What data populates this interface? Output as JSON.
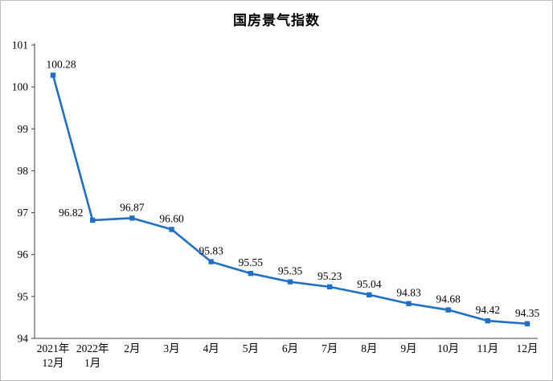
{
  "chart_data": {
    "type": "line",
    "title": "国房景气指数",
    "categories": [
      "2021年\n12月",
      "2022年\n1月",
      "2月",
      "3月",
      "4月",
      "5月",
      "6月",
      "7月",
      "8月",
      "9月",
      "10月",
      "11月",
      "12月"
    ],
    "values": [
      100.28,
      96.82,
      96.87,
      96.6,
      95.83,
      95.55,
      95.35,
      95.23,
      95.04,
      94.83,
      94.68,
      94.42,
      94.35
    ],
    "data_labels": [
      "100.28",
      "96.82",
      "96.87",
      "96.60",
      "95.83",
      "95.55",
      "95.35",
      "95.23",
      "95.04",
      "94.83",
      "94.68",
      "94.42",
      "94.35"
    ],
    "ylim": [
      94,
      101
    ],
    "y_ticks": [
      94,
      95,
      96,
      97,
      98,
      99,
      100,
      101
    ],
    "line_color": "#1f6fc4",
    "marker": "square",
    "axis_color": "#404040",
    "text_color": "#000000",
    "grid": false,
    "legend": false
  }
}
